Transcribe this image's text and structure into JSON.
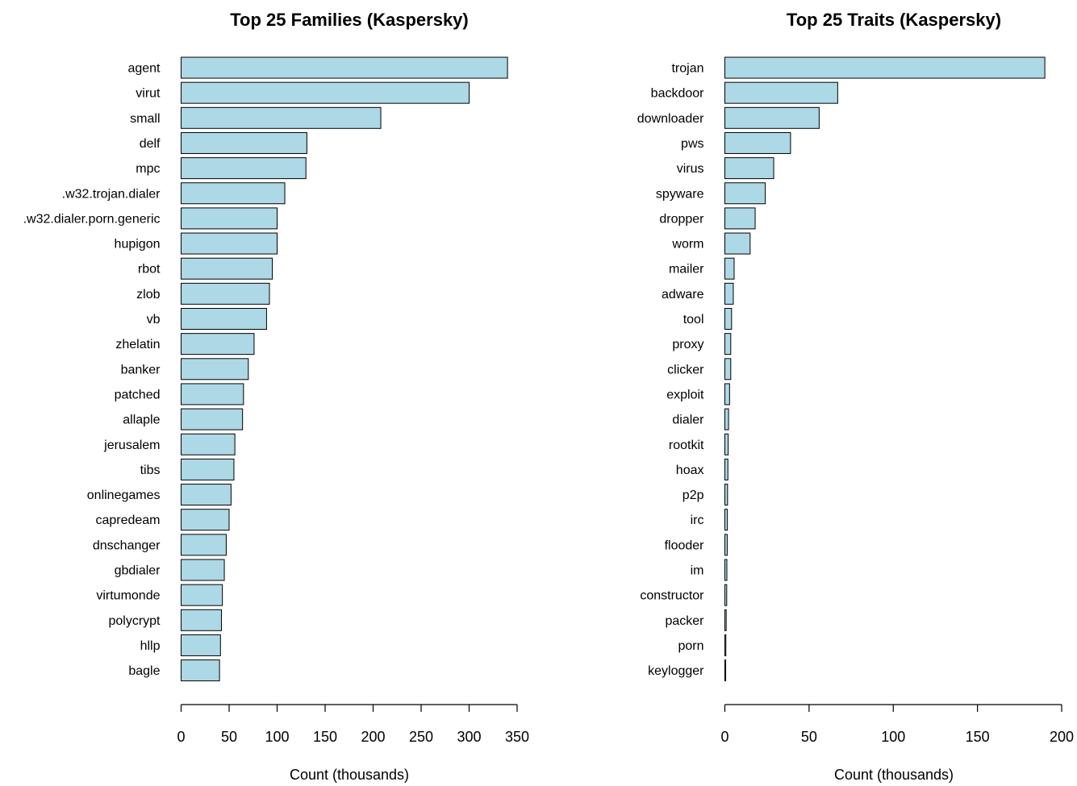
{
  "colors": {
    "bar_fill": "#add8e6",
    "bar_stroke": "#000000"
  },
  "chart_data": [
    {
      "type": "bar",
      "orientation": "horizontal",
      "title": "Top 25 Families (Kaspersky)",
      "xlabel": "Count (thousands)",
      "ylabel": "",
      "xlim": [
        0,
        350
      ],
      "xticks": [
        0,
        50,
        100,
        150,
        200,
        250,
        300,
        350
      ],
      "grid": false,
      "categories": [
        "agent",
        "virut",
        "small",
        "delf",
        "mpc",
        ".w32.trojan.dialer",
        ".w32.dialer.porn.generic",
        "hupigon",
        "rbot",
        "zlob",
        "vb",
        "zhelatin",
        "banker",
        "patched",
        "allaple",
        "jerusalem",
        "tibs",
        "onlinegames",
        "capredeam",
        "dnschanger",
        "gbdialer",
        "virtumonde",
        "polycrypt",
        "hllp",
        "bagle"
      ],
      "values": [
        340,
        300,
        208,
        131,
        130,
        108,
        100,
        100,
        95,
        92,
        89,
        76,
        70,
        65,
        64,
        56,
        55,
        52,
        50,
        47,
        45,
        43,
        42,
        41,
        40
      ]
    },
    {
      "type": "bar",
      "orientation": "horizontal",
      "title": "Top 25 Traits (Kaspersky)",
      "xlabel": "Count (thousands)",
      "ylabel": "",
      "xlim": [
        0,
        200
      ],
      "xticks": [
        0,
        50,
        100,
        150,
        200
      ],
      "grid": false,
      "categories": [
        "trojan",
        "backdoor",
        "downloader",
        "pws",
        "virus",
        "spyware",
        "dropper",
        "worm",
        "mailer",
        "adware",
        "tool",
        "proxy",
        "clicker",
        "exploit",
        "dialer",
        "rootkit",
        "hoax",
        "p2p",
        "irc",
        "flooder",
        "im",
        "constructor",
        "packer",
        "porn",
        "keylogger"
      ],
      "values": [
        190,
        67,
        56,
        39,
        29,
        24,
        18,
        15,
        5.5,
        5,
        4,
        3.5,
        3.5,
        2.8,
        2.2,
        2,
        1.8,
        1.6,
        1.5,
        1.4,
        1.2,
        1.1,
        0.8,
        0.6,
        0.5
      ]
    }
  ]
}
